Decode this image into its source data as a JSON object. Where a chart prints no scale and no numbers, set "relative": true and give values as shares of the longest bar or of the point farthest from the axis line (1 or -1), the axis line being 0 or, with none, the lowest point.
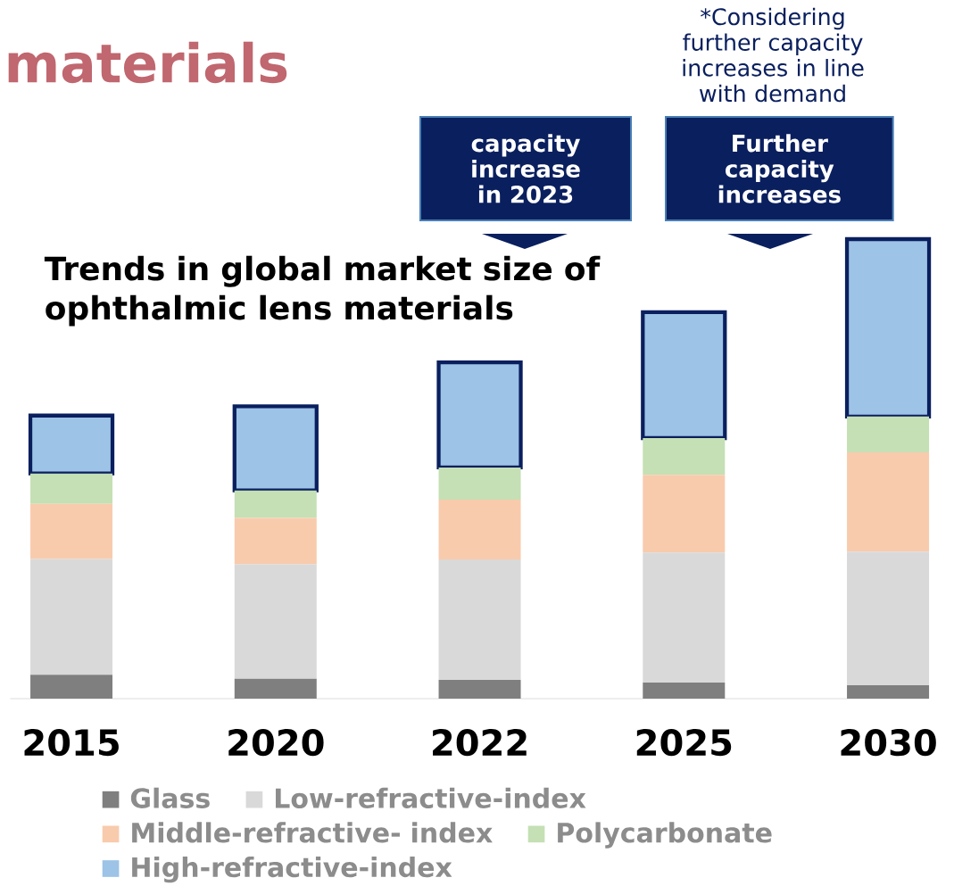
{
  "chart_data": {
    "type": "bar",
    "stacked": true,
    "relative": true,
    "title": "Trends in global market size of ophthalmic lens materials",
    "categories": [
      "2015",
      "2020",
      "2022",
      "2025",
      "2030"
    ],
    "series": [
      {
        "name": "Glass",
        "color": "#7f7f7f",
        "values": [
          0.052,
          0.043,
          0.041,
          0.035,
          0.029
        ]
      },
      {
        "name": "Low-refractive-index",
        "color": "#d9d9d9",
        "values": [
          0.252,
          0.249,
          0.262,
          0.283,
          0.291
        ]
      },
      {
        "name": "Middle-refractive- index",
        "color": "#f8cbad",
        "values": [
          0.12,
          0.101,
          0.13,
          0.169,
          0.216
        ]
      },
      {
        "name": "Polycarbonate",
        "color": "#c5e0b4",
        "values": [
          0.066,
          0.06,
          0.07,
          0.08,
          0.078
        ]
      },
      {
        "name": "High-refractive-index",
        "color": "#9dc3e6",
        "values": [
          0.126,
          0.183,
          0.229,
          0.274,
          0.386
        ]
      }
    ],
    "legend": "bottom",
    "annotations": [
      "materials",
      "*Considering further capacity increases in line with demand",
      "capacity increase in 2023",
      "Further capacity increases"
    ]
  }
}
